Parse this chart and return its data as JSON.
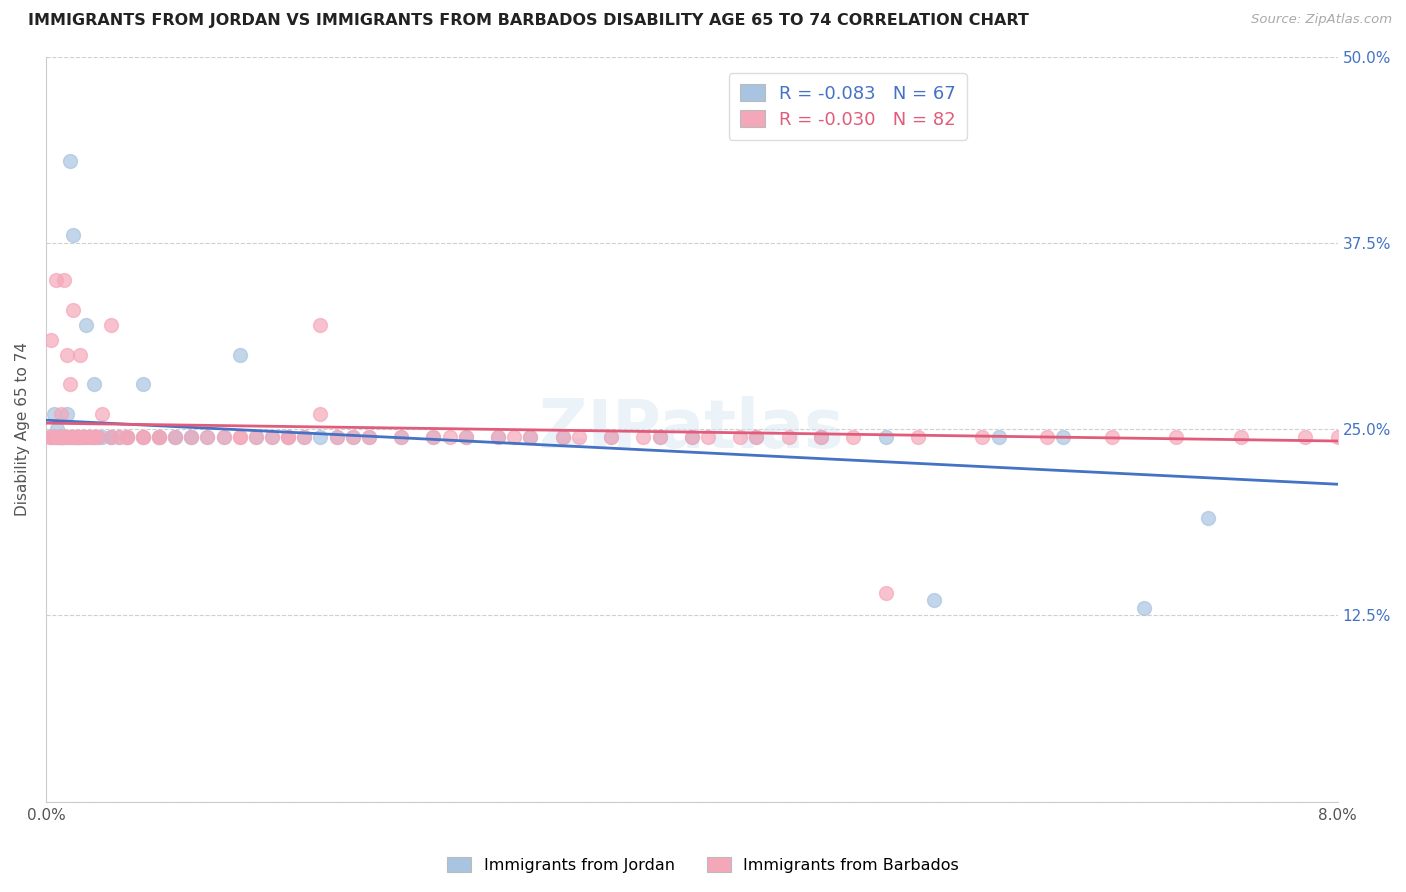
{
  "title": "IMMIGRANTS FROM JORDAN VS IMMIGRANTS FROM BARBADOS DISABILITY AGE 65 TO 74 CORRELATION CHART",
  "source": "Source: ZipAtlas.com",
  "ylabel": "Disability Age 65 to 74",
  "xlim": [
    0.0,
    0.08
  ],
  "ylim": [
    0.0,
    0.5
  ],
  "xticks": [
    0.0,
    0.02,
    0.04,
    0.06,
    0.08
  ],
  "xtick_labels": [
    "0.0%",
    "",
    "",
    "",
    "8.0%"
  ],
  "yticks": [
    0.0,
    0.125,
    0.25,
    0.375,
    0.5
  ],
  "ytick_labels": [
    "",
    "12.5%",
    "25.0%",
    "37.5%",
    "50.0%"
  ],
  "jordan_R": -0.083,
  "jordan_N": 67,
  "barbados_R": -0.03,
  "barbados_N": 82,
  "jordan_color": "#a8c4e0",
  "barbados_color": "#f4a7b9",
  "jordan_line_color": "#4472c4",
  "barbados_line_color": "#e05c7a",
  "jordan_x": [
    0.0003,
    0.0005,
    0.0006,
    0.0007,
    0.0008,
    0.0009,
    0.001,
    0.001,
    0.001,
    0.0012,
    0.0013,
    0.0014,
    0.0015,
    0.0016,
    0.0017,
    0.0018,
    0.002,
    0.002,
    0.0022,
    0.0023,
    0.0025,
    0.0027,
    0.003,
    0.003,
    0.0032,
    0.0035,
    0.004,
    0.004,
    0.0045,
    0.005,
    0.005,
    0.006,
    0.006,
    0.007,
    0.007,
    0.008,
    0.008,
    0.009,
    0.009,
    0.01,
    0.011,
    0.012,
    0.013,
    0.014,
    0.015,
    0.016,
    0.017,
    0.018,
    0.019,
    0.02,
    0.022,
    0.024,
    0.026,
    0.028,
    0.03,
    0.032,
    0.035,
    0.038,
    0.04,
    0.044,
    0.048,
    0.052,
    0.055,
    0.059,
    0.063,
    0.068,
    0.072
  ],
  "jordan_y": [
    0.245,
    0.26,
    0.245,
    0.25,
    0.245,
    0.245,
    0.245,
    0.245,
    0.245,
    0.245,
    0.26,
    0.245,
    0.43,
    0.245,
    0.38,
    0.245,
    0.245,
    0.245,
    0.245,
    0.245,
    0.32,
    0.245,
    0.245,
    0.28,
    0.245,
    0.245,
    0.245,
    0.245,
    0.245,
    0.245,
    0.245,
    0.28,
    0.245,
    0.245,
    0.245,
    0.245,
    0.245,
    0.245,
    0.245,
    0.245,
    0.245,
    0.3,
    0.245,
    0.245,
    0.245,
    0.245,
    0.245,
    0.245,
    0.245,
    0.245,
    0.245,
    0.245,
    0.245,
    0.245,
    0.245,
    0.245,
    0.245,
    0.245,
    0.245,
    0.245,
    0.245,
    0.245,
    0.135,
    0.245,
    0.245,
    0.13,
    0.19
  ],
  "barbados_x": [
    0.0002,
    0.0003,
    0.0004,
    0.0005,
    0.0006,
    0.0007,
    0.0008,
    0.0009,
    0.001,
    0.001,
    0.0011,
    0.0012,
    0.0013,
    0.0014,
    0.0015,
    0.0016,
    0.0017,
    0.0018,
    0.002,
    0.002,
    0.0021,
    0.0022,
    0.0024,
    0.0025,
    0.0027,
    0.003,
    0.003,
    0.0032,
    0.0035,
    0.004,
    0.004,
    0.0045,
    0.005,
    0.005,
    0.006,
    0.006,
    0.007,
    0.007,
    0.008,
    0.009,
    0.01,
    0.011,
    0.012,
    0.013,
    0.014,
    0.015,
    0.016,
    0.017,
    0.018,
    0.019,
    0.02,
    0.022,
    0.024,
    0.026,
    0.028,
    0.03,
    0.032,
    0.035,
    0.038,
    0.04,
    0.043,
    0.046,
    0.05,
    0.054,
    0.058,
    0.062,
    0.066,
    0.07,
    0.074,
    0.078,
    0.08,
    0.012,
    0.015,
    0.017,
    0.025,
    0.029,
    0.033,
    0.037,
    0.041,
    0.044,
    0.048,
    0.052
  ],
  "barbados_y": [
    0.245,
    0.31,
    0.245,
    0.245,
    0.35,
    0.245,
    0.245,
    0.26,
    0.245,
    0.245,
    0.35,
    0.245,
    0.3,
    0.245,
    0.28,
    0.245,
    0.33,
    0.245,
    0.245,
    0.245,
    0.3,
    0.245,
    0.245,
    0.245,
    0.245,
    0.245,
    0.245,
    0.245,
    0.26,
    0.245,
    0.32,
    0.245,
    0.245,
    0.245,
    0.245,
    0.245,
    0.245,
    0.245,
    0.245,
    0.245,
    0.245,
    0.245,
    0.245,
    0.245,
    0.245,
    0.245,
    0.245,
    0.26,
    0.245,
    0.245,
    0.245,
    0.245,
    0.245,
    0.245,
    0.245,
    0.245,
    0.245,
    0.245,
    0.245,
    0.245,
    0.245,
    0.245,
    0.245,
    0.245,
    0.245,
    0.245,
    0.245,
    0.245,
    0.245,
    0.245,
    0.245,
    0.245,
    0.245,
    0.32,
    0.245,
    0.245,
    0.245,
    0.245,
    0.245,
    0.245,
    0.245,
    0.14
  ]
}
